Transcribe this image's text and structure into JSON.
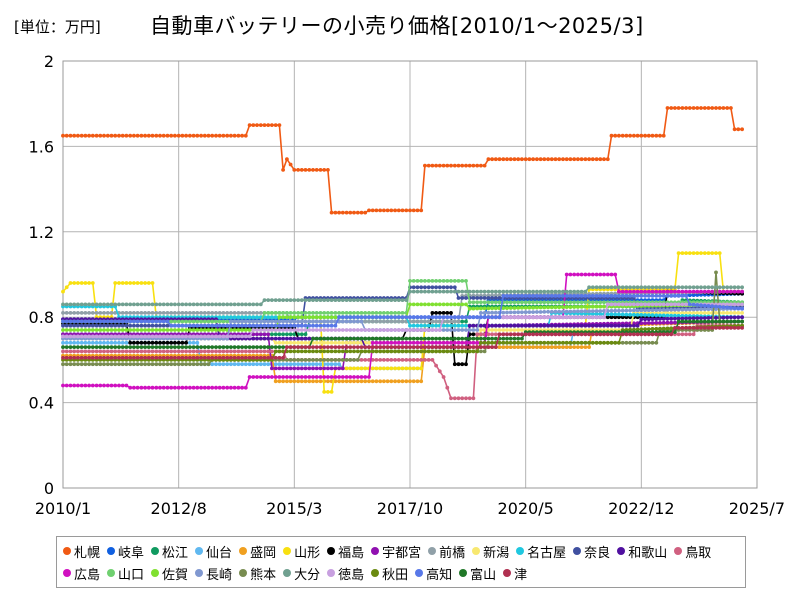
{
  "header": {
    "unit": "[単位：万円]",
    "title": "自動車バッテリーの小売り価格[2010/1～2025/3]"
  },
  "chart_data": {
    "type": "line",
    "title": "自動車バッテリーの小売り価格[2010/1～2025/3]",
    "unit_label": "[単位：万円]",
    "xlabel": "",
    "ylabel": "",
    "x_ticks": [
      "2010/1",
      "2012/8",
      "2015/3",
      "2017/10",
      "2020/5",
      "2022/12",
      "2025/7"
    ],
    "y_ticks": [
      "0",
      "0.4",
      "0.8",
      "1.2",
      "1.6",
      "2"
    ],
    "ylim": [
      0,
      2
    ],
    "xlim": [
      "2010/1",
      "2025/7"
    ],
    "grid": true,
    "legend_position": "bottom",
    "series": [
      {
        "name": "札幌",
        "color": "#f05a14",
        "points": [
          [
            "2010/1",
            1.65
          ],
          [
            "2014/2",
            1.65
          ],
          [
            "2014/3",
            1.7
          ],
          [
            "2014/11",
            1.7
          ],
          [
            "2014/12",
            1.49
          ],
          [
            "2015/1",
            1.54
          ],
          [
            "2015/3",
            1.49
          ],
          [
            "2015/12",
            1.49
          ],
          [
            "2016/1",
            1.29
          ],
          [
            "2016/10",
            1.29
          ],
          [
            "2016/11",
            1.3
          ],
          [
            "2018/1",
            1.3
          ],
          [
            "2018/2",
            1.51
          ],
          [
            "2019/6",
            1.51
          ],
          [
            "2019/7",
            1.54
          ],
          [
            "2022/3",
            1.54
          ],
          [
            "2022/4",
            1.65
          ],
          [
            "2023/6",
            1.65
          ],
          [
            "2023/7",
            1.78
          ],
          [
            "2024/12",
            1.78
          ],
          [
            "2025/1",
            1.68
          ],
          [
            "2025/3",
            1.68
          ]
        ]
      },
      {
        "name": "岐阜",
        "color": "#1060e0",
        "points": [
          [
            "2010/1",
            0.79
          ],
          [
            "2015/3",
            0.79
          ],
          [
            "2015/4",
            0.8
          ],
          [
            "2019/6",
            0.8
          ],
          [
            "2019/7",
            0.88
          ],
          [
            "2023/6",
            0.88
          ],
          [
            "2023/7",
            0.9
          ],
          [
            "2025/3",
            0.91
          ]
        ]
      },
      {
        "name": "松江",
        "color": "#109a60",
        "points": [
          [
            "2010/1",
            0.72
          ],
          [
            "2015/6",
            0.72
          ],
          [
            "2015/7",
            0.78
          ],
          [
            "2019/1",
            0.78
          ],
          [
            "2019/2",
            0.85
          ],
          [
            "2023/10",
            0.85
          ],
          [
            "2023/11",
            0.88
          ],
          [
            "2025/3",
            0.87
          ]
        ]
      },
      {
        "name": "仙台",
        "color": "#60b8f0",
        "points": [
          [
            "2010/1",
            0.68
          ],
          [
            "2013/1",
            0.68
          ],
          [
            "2013/2",
            0.58
          ],
          [
            "2016/3",
            0.58
          ],
          [
            "2016/4",
            0.56
          ],
          [
            "2018/1",
            0.56
          ],
          [
            "2018/2",
            0.66
          ],
          [
            "2021/5",
            0.66
          ],
          [
            "2021/6",
            0.76
          ],
          [
            "2025/3",
            0.78
          ]
        ]
      },
      {
        "name": "盛岡",
        "color": "#f0a020",
        "points": [
          [
            "2010/1",
            0.62
          ],
          [
            "2014/9",
            0.62
          ],
          [
            "2014/10",
            0.5
          ],
          [
            "2018/1",
            0.5
          ],
          [
            "2018/2",
            0.66
          ],
          [
            "2021/10",
            0.66
          ],
          [
            "2021/11",
            0.76
          ],
          [
            "2025/3",
            0.78
          ]
        ]
      },
      {
        "name": "山形",
        "color": "#f8e010",
        "points": [
          [
            "2010/1",
            0.92
          ],
          [
            "2010/3",
            0.96
          ],
          [
            "2010/9",
            0.96
          ],
          [
            "2010/10",
            0.8
          ],
          [
            "2011/2",
            0.8
          ],
          [
            "2011/3",
            0.96
          ],
          [
            "2012/1",
            0.96
          ],
          [
            "2012/2",
            0.8
          ],
          [
            "2015/10",
            0.8
          ],
          [
            "2015/11",
            0.45
          ],
          [
            "2016/1",
            0.45
          ],
          [
            "2016/2",
            0.56
          ],
          [
            "2018/1",
            0.56
          ],
          [
            "2018/2",
            0.76
          ],
          [
            "2021/9",
            0.76
          ],
          [
            "2021/10",
            0.93
          ],
          [
            "2023/9",
            0.93
          ],
          [
            "2023/10",
            1.1
          ],
          [
            "2024/9",
            1.1
          ],
          [
            "2024/10",
            0.92
          ],
          [
            "2025/3",
            0.92
          ]
        ]
      },
      {
        "name": "福島",
        "color": "#000000",
        "points": [
          [
            "2010/1",
            0.77
          ],
          [
            "2011/6",
            0.77
          ],
          [
            "2011/7",
            0.68
          ],
          [
            "2012/10",
            0.68
          ],
          [
            "2012/11",
            0.75
          ],
          [
            "2015/3",
            0.75
          ],
          [
            "2015/4",
            0.7
          ],
          [
            "2017/8",
            0.7
          ],
          [
            "2017/9",
            0.74
          ],
          [
            "2018/3",
            0.74
          ],
          [
            "2018/4",
            0.82
          ],
          [
            "2018/9",
            0.82
          ],
          [
            "2018/10",
            0.58
          ],
          [
            "2019/1",
            0.58
          ],
          [
            "2019/2",
            0.72
          ],
          [
            "2019/6",
            0.72
          ],
          [
            "2019/7",
            0.8
          ],
          [
            "2023/6",
            0.8
          ],
          [
            "2023/7",
            0.92
          ],
          [
            "2025/3",
            0.91
          ]
        ]
      },
      {
        "name": "宇都宮",
        "color": "#9010b0",
        "points": [
          [
            "2010/1",
            0.72
          ],
          [
            "2014/8",
            0.72
          ],
          [
            "2014/9",
            0.56
          ],
          [
            "2016/4",
            0.56
          ],
          [
            "2016/5",
            0.68
          ],
          [
            "2019/6",
            0.68
          ],
          [
            "2019/7",
            0.76
          ],
          [
            "2025/3",
            0.78
          ]
        ]
      },
      {
        "name": "前橋",
        "color": "#90a0a8",
        "points": [
          [
            "2010/1",
            0.82
          ],
          [
            "2015/1",
            0.82
          ],
          [
            "2015/2",
            0.78
          ],
          [
            "2018/11",
            0.78
          ],
          [
            "2018/12",
            0.9
          ],
          [
            "2025/3",
            0.92
          ]
        ]
      },
      {
        "name": "新潟",
        "color": "#f8e870",
        "points": [
          [
            "2010/1",
            0.7
          ],
          [
            "2014/9",
            0.7
          ],
          [
            "2014/10",
            0.68
          ],
          [
            "2019/4",
            0.68
          ],
          [
            "2019/5",
            0.74
          ],
          [
            "2022/9",
            0.74
          ],
          [
            "2022/10",
            0.82
          ],
          [
            "2025/3",
            0.82
          ]
        ]
      },
      {
        "name": "名古屋",
        "color": "#20c8e0",
        "points": [
          [
            "2010/1",
            0.85
          ],
          [
            "2011/3",
            0.85
          ],
          [
            "2011/4",
            0.8
          ],
          [
            "2017/9",
            0.8
          ],
          [
            "2017/10",
            0.76
          ],
          [
            "2020/11",
            0.76
          ],
          [
            "2020/12",
            0.82
          ],
          [
            "2025/3",
            0.8
          ]
        ]
      },
      {
        "name": "奈良",
        "color": "#4050a0",
        "points": [
          [
            "2010/1",
            0.76
          ],
          [
            "2015/5",
            0.76
          ],
          [
            "2015/6",
            0.89
          ],
          [
            "2017/9",
            0.89
          ],
          [
            "2017/10",
            0.94
          ],
          [
            "2018/10",
            0.94
          ],
          [
            "2018/11",
            0.89
          ],
          [
            "2022/10",
            0.89
          ],
          [
            "2022/11",
            0.84
          ],
          [
            "2025/3",
            0.85
          ]
        ]
      },
      {
        "name": "和歌山",
        "color": "#5010a0",
        "points": [
          [
            "2010/1",
            0.79
          ],
          [
            "2013/6",
            0.79
          ],
          [
            "2013/7",
            0.7
          ],
          [
            "2016/9",
            0.7
          ],
          [
            "2016/10",
            0.66
          ],
          [
            "2019/1",
            0.66
          ],
          [
            "2019/2",
            0.76
          ],
          [
            "2022/11",
            0.76
          ],
          [
            "2022/12",
            0.79
          ],
          [
            "2025/3",
            0.8
          ]
        ]
      },
      {
        "name": "鳥取",
        "color": "#d06080",
        "points": [
          [
            "2010/1",
            0.64
          ],
          [
            "2014/12",
            0.64
          ],
          [
            "2015/1",
            0.6
          ],
          [
            "2018/4",
            0.6
          ],
          [
            "2018/7",
            0.52
          ],
          [
            "2018/9",
            0.42
          ],
          [
            "2019/3",
            0.42
          ],
          [
            "2019/4",
            0.72
          ],
          [
            "2024/2",
            0.72
          ],
          [
            "2024/3",
            0.76
          ],
          [
            "2025/3",
            0.76
          ]
        ]
      },
      {
        "name": "広島",
        "color": "#d010c0",
        "points": [
          [
            "2010/1",
            0.48
          ],
          [
            "2011/6",
            0.48
          ],
          [
            "2011/7",
            0.47
          ],
          [
            "2014/2",
            0.47
          ],
          [
            "2014/3",
            0.52
          ],
          [
            "2016/11",
            0.52
          ],
          [
            "2016/12",
            0.68
          ],
          [
            "2019/6",
            0.68
          ],
          [
            "2019/7",
            0.8
          ],
          [
            "2021/3",
            0.8
          ],
          [
            "2021/4",
            1.0
          ],
          [
            "2022/5",
            1.0
          ],
          [
            "2022/6",
            0.92
          ],
          [
            "2025/3",
            0.92
          ]
        ]
      },
      {
        "name": "山口",
        "color": "#70d070",
        "points": [
          [
            "2010/1",
            0.78
          ],
          [
            "2014/6",
            0.78
          ],
          [
            "2014/7",
            0.82
          ],
          [
            "2017/9",
            0.82
          ],
          [
            "2017/10",
            0.97
          ],
          [
            "2019/1",
            0.97
          ],
          [
            "2019/2",
            0.87
          ],
          [
            "2025/3",
            0.87
          ]
        ]
      },
      {
        "name": "佐賀",
        "color": "#80e030",
        "points": [
          [
            "2010/1",
            0.74
          ],
          [
            "2014/10",
            0.74
          ],
          [
            "2014/11",
            0.8
          ],
          [
            "2017/9",
            0.8
          ],
          [
            "2017/10",
            0.86
          ],
          [
            "2019/1",
            0.86
          ],
          [
            "2019/2",
            0.84
          ],
          [
            "2025/3",
            0.86
          ]
        ]
      },
      {
        "name": "長崎",
        "color": "#8098d0",
        "points": [
          [
            "2010/1",
            0.7
          ],
          [
            "2013/9",
            0.7
          ],
          [
            "2013/10",
            0.78
          ],
          [
            "2016/9",
            0.78
          ],
          [
            "2016/10",
            0.74
          ],
          [
            "2019/4",
            0.74
          ],
          [
            "2019/5",
            0.82
          ],
          [
            "2025/3",
            0.84
          ]
        ]
      },
      {
        "name": "熊本",
        "color": "#788c50",
        "points": [
          [
            "2010/1",
            0.58
          ],
          [
            "2013/4",
            0.58
          ],
          [
            "2013/5",
            0.6
          ],
          [
            "2016/8",
            0.6
          ],
          [
            "2016/9",
            0.64
          ],
          [
            "2019/6",
            0.64
          ],
          [
            "2019/7",
            0.68
          ],
          [
            "2023/4",
            0.68
          ],
          [
            "2023/5",
            0.74
          ],
          [
            "2024/7",
            0.74
          ],
          [
            "2024/8",
            1.01
          ],
          [
            "2024/9",
            0.78
          ],
          [
            "2025/3",
            0.78
          ]
        ]
      },
      {
        "name": "大分",
        "color": "#70a090",
        "points": [
          [
            "2010/1",
            0.86
          ],
          [
            "2014/6",
            0.86
          ],
          [
            "2014/7",
            0.88
          ],
          [
            "2017/9",
            0.88
          ],
          [
            "2017/10",
            0.92
          ],
          [
            "2021/9",
            0.92
          ],
          [
            "2021/10",
            0.94
          ],
          [
            "2025/3",
            0.94
          ]
        ]
      },
      {
        "name": "徳島",
        "color": "#c8a0e0",
        "points": [
          [
            "2010/1",
            0.71
          ],
          [
            "2014/3",
            0.71
          ],
          [
            "2014/4",
            0.74
          ],
          [
            "2018/6",
            0.74
          ],
          [
            "2018/7",
            0.8
          ],
          [
            "2022/2",
            0.8
          ],
          [
            "2022/3",
            0.86
          ],
          [
            "2025/3",
            0.86
          ]
        ]
      },
      {
        "name": "秋田",
        "color": "#6a8a10",
        "points": [
          [
            "2010/1",
            0.6
          ],
          [
            "2014/9",
            0.6
          ],
          [
            "2014/10",
            0.64
          ],
          [
            "2019/4",
            0.64
          ],
          [
            "2019/5",
            0.68
          ],
          [
            "2022/6",
            0.68
          ],
          [
            "2022/7",
            0.74
          ],
          [
            "2025/3",
            0.76
          ]
        ]
      },
      {
        "name": "高知",
        "color": "#5878e8",
        "points": [
          [
            "2010/1",
            0.78
          ],
          [
            "2012/5",
            0.78
          ],
          [
            "2012/6",
            0.76
          ],
          [
            "2016/2",
            0.76
          ],
          [
            "2016/3",
            0.8
          ],
          [
            "2019/10",
            0.8
          ],
          [
            "2019/11",
            0.9
          ],
          [
            "2023/12",
            0.9
          ],
          [
            "2024/1",
            0.86
          ],
          [
            "2025/3",
            0.84
          ]
        ]
      },
      {
        "name": "富山",
        "color": "#207828",
        "points": [
          [
            "2010/1",
            0.66
          ],
          [
            "2015/7",
            0.66
          ],
          [
            "2015/8",
            0.7
          ],
          [
            "2020/4",
            0.7
          ],
          [
            "2020/5",
            0.73
          ],
          [
            "2023/9",
            0.73
          ],
          [
            "2023/10",
            0.78
          ],
          [
            "2025/3",
            0.78
          ]
        ]
      },
      {
        "name": "津",
        "color": "#b03050",
        "points": [
          [
            "2010/1",
            0.61
          ],
          [
            "2014/12",
            0.61
          ],
          [
            "2015/1",
            0.66
          ],
          [
            "2019/9",
            0.66
          ],
          [
            "2019/10",
            0.72
          ],
          [
            "2023/8",
            0.72
          ],
          [
            "2023/9",
            0.75
          ],
          [
            "2025/3",
            0.75
          ]
        ]
      }
    ]
  }
}
